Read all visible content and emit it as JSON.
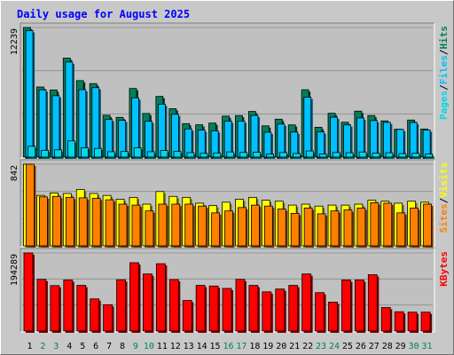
{
  "title": "Daily usage for August 2025",
  "colors": {
    "title": "#0000ff",
    "hits": "#00805c",
    "files": "#00c0ff",
    "pages": "#00d8e8",
    "visits": "#ffff00",
    "sites": "#ff8000",
    "kbytes": "#ff0000",
    "weekend_label": "#00805c",
    "weekday_label": "#000000",
    "panel_bg": "#c0c0c0",
    "frame_bg": "#c8c8c8"
  },
  "chart_data": {
    "type": "bar",
    "x": [
      "1",
      "2",
      "3",
      "4",
      "5",
      "6",
      "7",
      "8",
      "9",
      "10",
      "11",
      "12",
      "13",
      "14",
      "15",
      "16",
      "17",
      "18",
      "19",
      "20",
      "21",
      "22",
      "23",
      "24",
      "25",
      "26",
      "27",
      "28",
      "29",
      "30",
      "31"
    ],
    "weekend_days": [
      "2",
      "3",
      "9",
      "10",
      "16",
      "17",
      "23",
      "24",
      "30",
      "31"
    ],
    "panels": [
      {
        "scale_label": "12239",
        "ymax": 12239,
        "legend": [
          "Hits",
          "Files",
          "Pages"
        ],
        "series": [
          {
            "name": "Hits",
            "values": [
              12239,
              6620,
              6340,
              9350,
              7220,
              6940,
              3950,
              3750,
              6480,
              4120,
              5730,
              4570,
              3160,
              3050,
              3210,
              3870,
              3920,
              4310,
              2950,
              3580,
              3040,
              6360,
              2810,
              4140,
              3290,
              4340,
              3920,
              3420,
              2630,
              3500,
              2650
            ]
          },
          {
            "name": "Files",
            "values": [
              11950,
              6350,
              5800,
              8980,
              6370,
              6560,
              3560,
              3480,
              5600,
              3380,
              5000,
              4040,
              2660,
              2550,
              2480,
              3400,
              3400,
              3930,
              2350,
              3120,
              2360,
              5660,
              2380,
              3770,
              3040,
              3700,
              3450,
              3280,
              2610,
              3270,
              2550
            ]
          },
          {
            "name": "Pages",
            "values": [
              1020,
              640,
              690,
              1530,
              890,
              820,
              510,
              530,
              870,
              510,
              620,
              530,
              420,
              350,
              380,
              490,
              440,
              460,
              290,
              430,
              340,
              580,
              300,
              430,
              410,
              480,
              380,
              410,
              330,
              360,
              290
            ]
          }
        ]
      },
      {
        "scale_label": "842",
        "ymax": 842,
        "legend": [
          "Visits",
          "Sites"
        ],
        "series": [
          {
            "name": "Visits",
            "values": [
              842,
              520,
              545,
              540,
              580,
              540,
              520,
              480,
              500,
              430,
              560,
              510,
              500,
              440,
              415,
              450,
              480,
              500,
              470,
              460,
              420,
              430,
              410,
              420,
              420,
              430,
              470,
              460,
              440,
              460,
              450
            ]
          },
          {
            "name": "Sites",
            "values": [
              842,
              505,
              510,
              500,
              495,
              490,
              475,
              430,
              420,
              360,
              430,
              430,
              430,
              410,
              340,
              360,
              395,
              420,
              410,
              380,
              335,
              390,
              330,
              360,
              370,
              390,
              445,
              440,
              340,
              390,
              430
            ]
          }
        ]
      },
      {
        "scale_label": "194289",
        "ymax": 194289,
        "legend": [
          "KBytes"
        ],
        "series": [
          {
            "name": "KBytes",
            "values": [
              194289,
              128500,
              113000,
              127000,
              113500,
              80000,
              65500,
              127500,
              170000,
              142000,
              167500,
              128000,
              76000,
              113500,
              112000,
              106000,
              128500,
              113500,
              97500,
              104500,
              113500,
              142000,
              95500,
              72000,
              127000,
              127000,
              140000,
              58500,
              48000,
              47000,
              47000
            ]
          }
        ]
      }
    ]
  }
}
